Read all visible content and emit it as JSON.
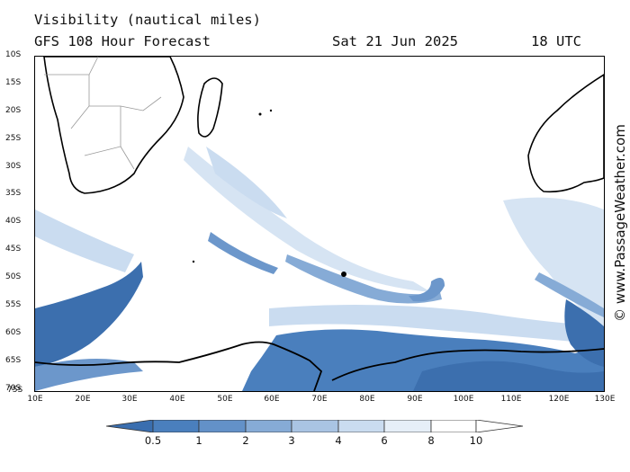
{
  "title": "Visibility (nautical miles)",
  "subtitle": "GFS 108 Hour Forecast",
  "date": "Sat 21 Jun 2025",
  "time": "18 UTC",
  "watermark": "© www.PassageWeather.com",
  "lat_labels": [
    "10S",
    "15S",
    "20S",
    "25S",
    "30S",
    "35S",
    "40S",
    "45S",
    "50S",
    "55S",
    "60S",
    "65S",
    "70S",
    "75S"
  ],
  "lon_labels": [
    "10E",
    "20E",
    "30E",
    "40E",
    "50E",
    "60E",
    "70E",
    "80E",
    "90E",
    "100E",
    "110E",
    "120E",
    "130E"
  ],
  "colorbar": {
    "labels": [
      "0.5",
      "1",
      "2",
      "3",
      "4",
      "6",
      "8",
      "10"
    ],
    "colors": [
      "#3a6eaf",
      "#4a7fbd",
      "#6391c8",
      "#86abd6",
      "#a9c4e3",
      "#cadcf0",
      "#e6eff8",
      "#ffffff"
    ]
  },
  "map": {
    "land_color": "#ffffff",
    "coast_color": "#000000",
    "border_color": "#999999",
    "fog_dense": "#3c6fae",
    "fog_medium": "#6c97cb",
    "fog_light": "#a9c4e3",
    "fog_faint": "#d6e4f3"
  }
}
